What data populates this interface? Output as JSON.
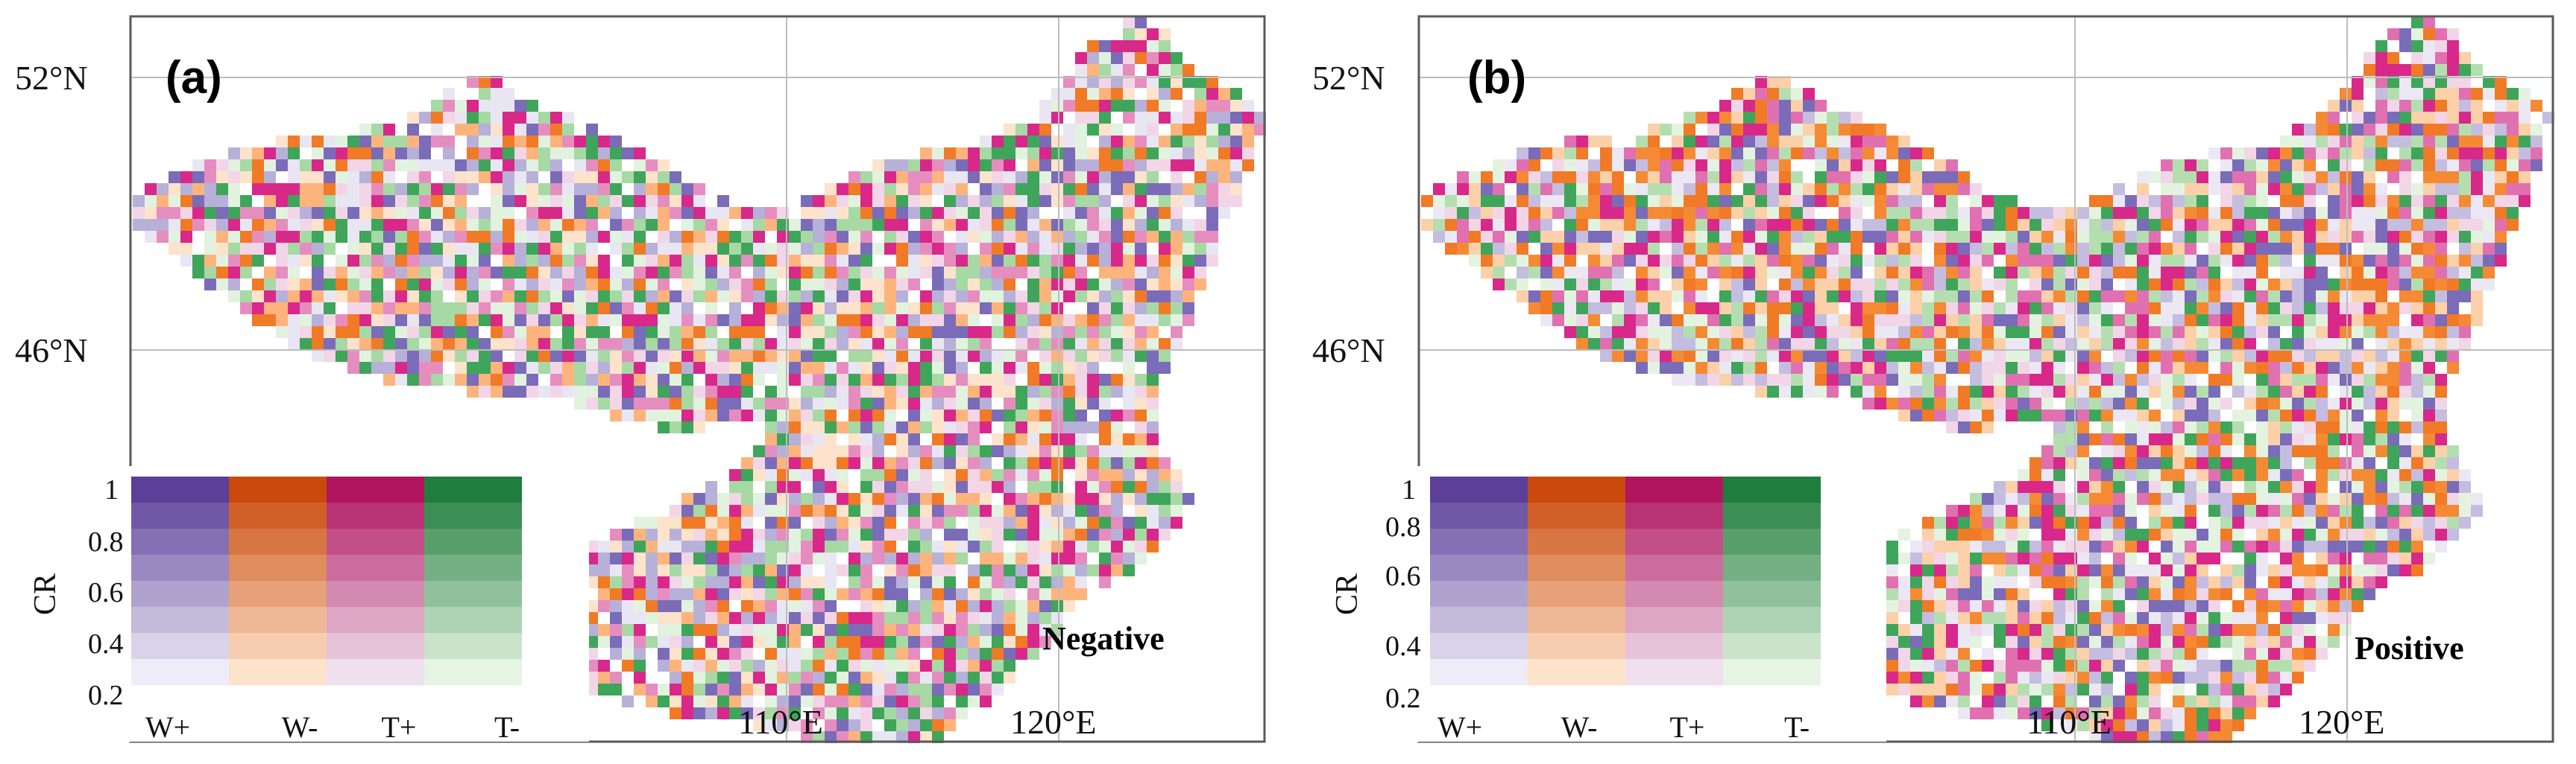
{
  "figure": {
    "panels": [
      {
        "id": "a",
        "label": "(a)",
        "sign": "Negative"
      },
      {
        "id": "b",
        "label": "(b)",
        "sign": "Positive"
      }
    ],
    "latitude_labels": [
      "52°N",
      "46°N"
    ],
    "longitude_labels": [
      "110°E",
      "120°E"
    ]
  },
  "legend": {
    "axis_title": "CR",
    "ticks": [
      "1",
      "0.8",
      "0.6",
      "0.4",
      "0.2"
    ],
    "categories": [
      {
        "label": "W+",
        "color_light": "#eeecf6",
        "color_dark": "#5b3f99"
      },
      {
        "label": "W-",
        "color_light": "#fde3cc",
        "color_dark": "#c94a0c"
      },
      {
        "label": "T+",
        "color_light": "#efe0ee",
        "color_dark": "#b0155e"
      },
      {
        "label": "T-",
        "color_light": "#e6f4e3",
        "color_dark": "#1f7d3d"
      }
    ]
  },
  "colors": {
    "W+": "#7a6cb8",
    "W-": "#f07a26",
    "T+": "#d8288a",
    "T-": "#3fa55a"
  }
}
